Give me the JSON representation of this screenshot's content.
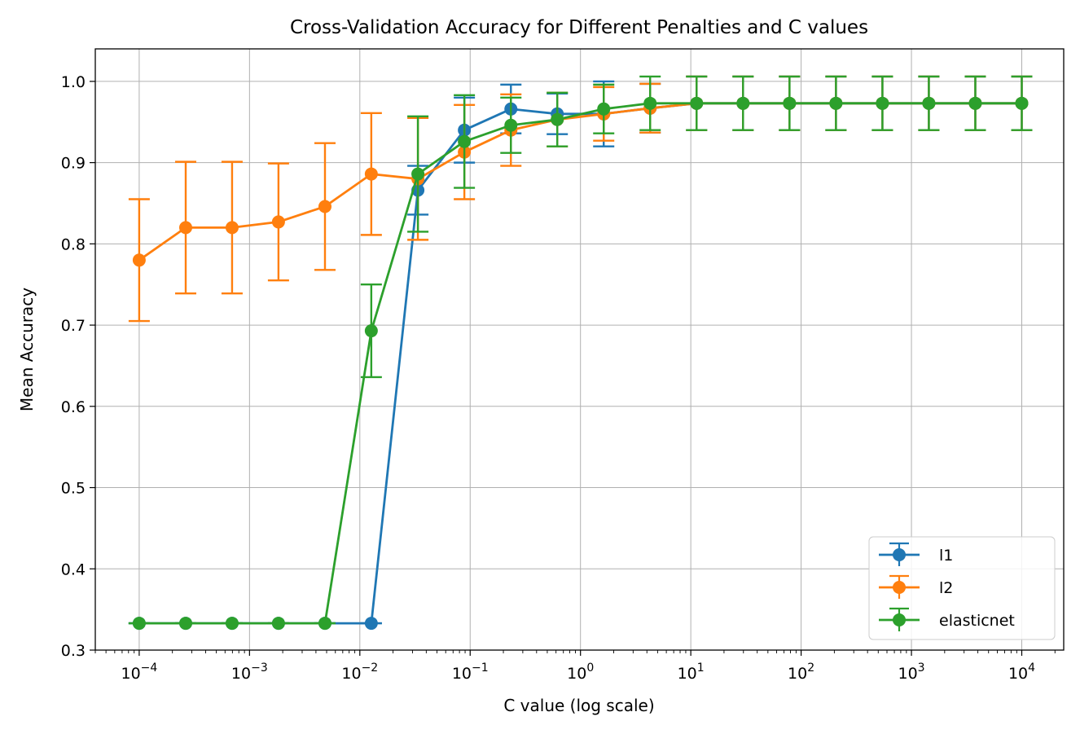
{
  "chart_data": {
    "type": "line",
    "title": "Cross-Validation Accuracy for Different Penalties and C values",
    "xlabel": "C value (log scale)",
    "ylabel": "Mean Accuracy",
    "xscale": "log",
    "xlim": [
      4e-05,
      24000
    ],
    "ylim": [
      0.3,
      1.04
    ],
    "grid": true,
    "legend_position": "lower-right",
    "x_ticks": [
      {
        "value": 0.0001,
        "base": "10",
        "exp": "−4"
      },
      {
        "value": 0.001,
        "base": "10",
        "exp": "−3"
      },
      {
        "value": 0.01,
        "base": "10",
        "exp": "−2"
      },
      {
        "value": 0.1,
        "base": "10",
        "exp": "−1"
      },
      {
        "value": 1,
        "base": "10",
        "exp": "0"
      },
      {
        "value": 10,
        "base": "10",
        "exp": "1"
      },
      {
        "value": 100,
        "base": "10",
        "exp": "2"
      },
      {
        "value": 1000,
        "base": "10",
        "exp": "3"
      },
      {
        "value": 10000,
        "base": "10",
        "exp": "4"
      }
    ],
    "y_ticks": [
      "0.3",
      "0.4",
      "0.5",
      "0.6",
      "0.7",
      "0.8",
      "0.9",
      "1.0"
    ],
    "x": [
      0.0001,
      0.000264,
      0.000695,
      0.00183,
      0.00483,
      0.0127,
      0.0336,
      0.0886,
      0.234,
      0.616,
      1.624,
      4.28,
      11.29,
      29.76,
      78.48,
      206.9,
      545.6,
      1438,
      3793,
      10000
    ],
    "series": [
      {
        "name": "l1",
        "color": "#1f77b4",
        "y": [
          0.333,
          0.333,
          0.333,
          0.333,
          0.333,
          0.333,
          0.866,
          0.94,
          0.966,
          0.96,
          0.96,
          0.967,
          0.973,
          0.973,
          0.973,
          0.973,
          0.973,
          0.973,
          0.973,
          0.973
        ],
        "err": [
          0,
          0,
          0,
          0,
          0,
          0,
          0.03,
          0.04,
          0.03,
          0.025,
          0.04,
          0.03,
          0.033,
          0.033,
          0.033,
          0.033,
          0.033,
          0.033,
          0.033,
          0.033
        ]
      },
      {
        "name": "l2",
        "color": "#ff7f0e",
        "y": [
          0.78,
          0.82,
          0.82,
          0.827,
          0.846,
          0.886,
          0.88,
          0.913,
          0.94,
          0.953,
          0.96,
          0.967,
          0.973,
          0.973,
          0.973,
          0.973,
          0.973,
          0.973,
          0.973,
          0.973
        ],
        "err": [
          0.075,
          0.081,
          0.081,
          0.072,
          0.078,
          0.075,
          0.075,
          0.058,
          0.044,
          0.033,
          0.033,
          0.03,
          0.033,
          0.033,
          0.033,
          0.033,
          0.033,
          0.033,
          0.033,
          0.033
        ]
      },
      {
        "name": "elasticnet",
        "color": "#2ca02c",
        "y": [
          0.333,
          0.333,
          0.333,
          0.333,
          0.333,
          0.693,
          0.886,
          0.926,
          0.946,
          0.953,
          0.966,
          0.973,
          0.973,
          0.973,
          0.973,
          0.973,
          0.973,
          0.973,
          0.973,
          0.973
        ],
        "err": [
          0,
          0,
          0,
          0,
          0,
          0.057,
          0.071,
          0.057,
          0.034,
          0.033,
          0.03,
          0.033,
          0.033,
          0.033,
          0.033,
          0.033,
          0.033,
          0.033,
          0.033,
          0.033
        ]
      }
    ]
  }
}
